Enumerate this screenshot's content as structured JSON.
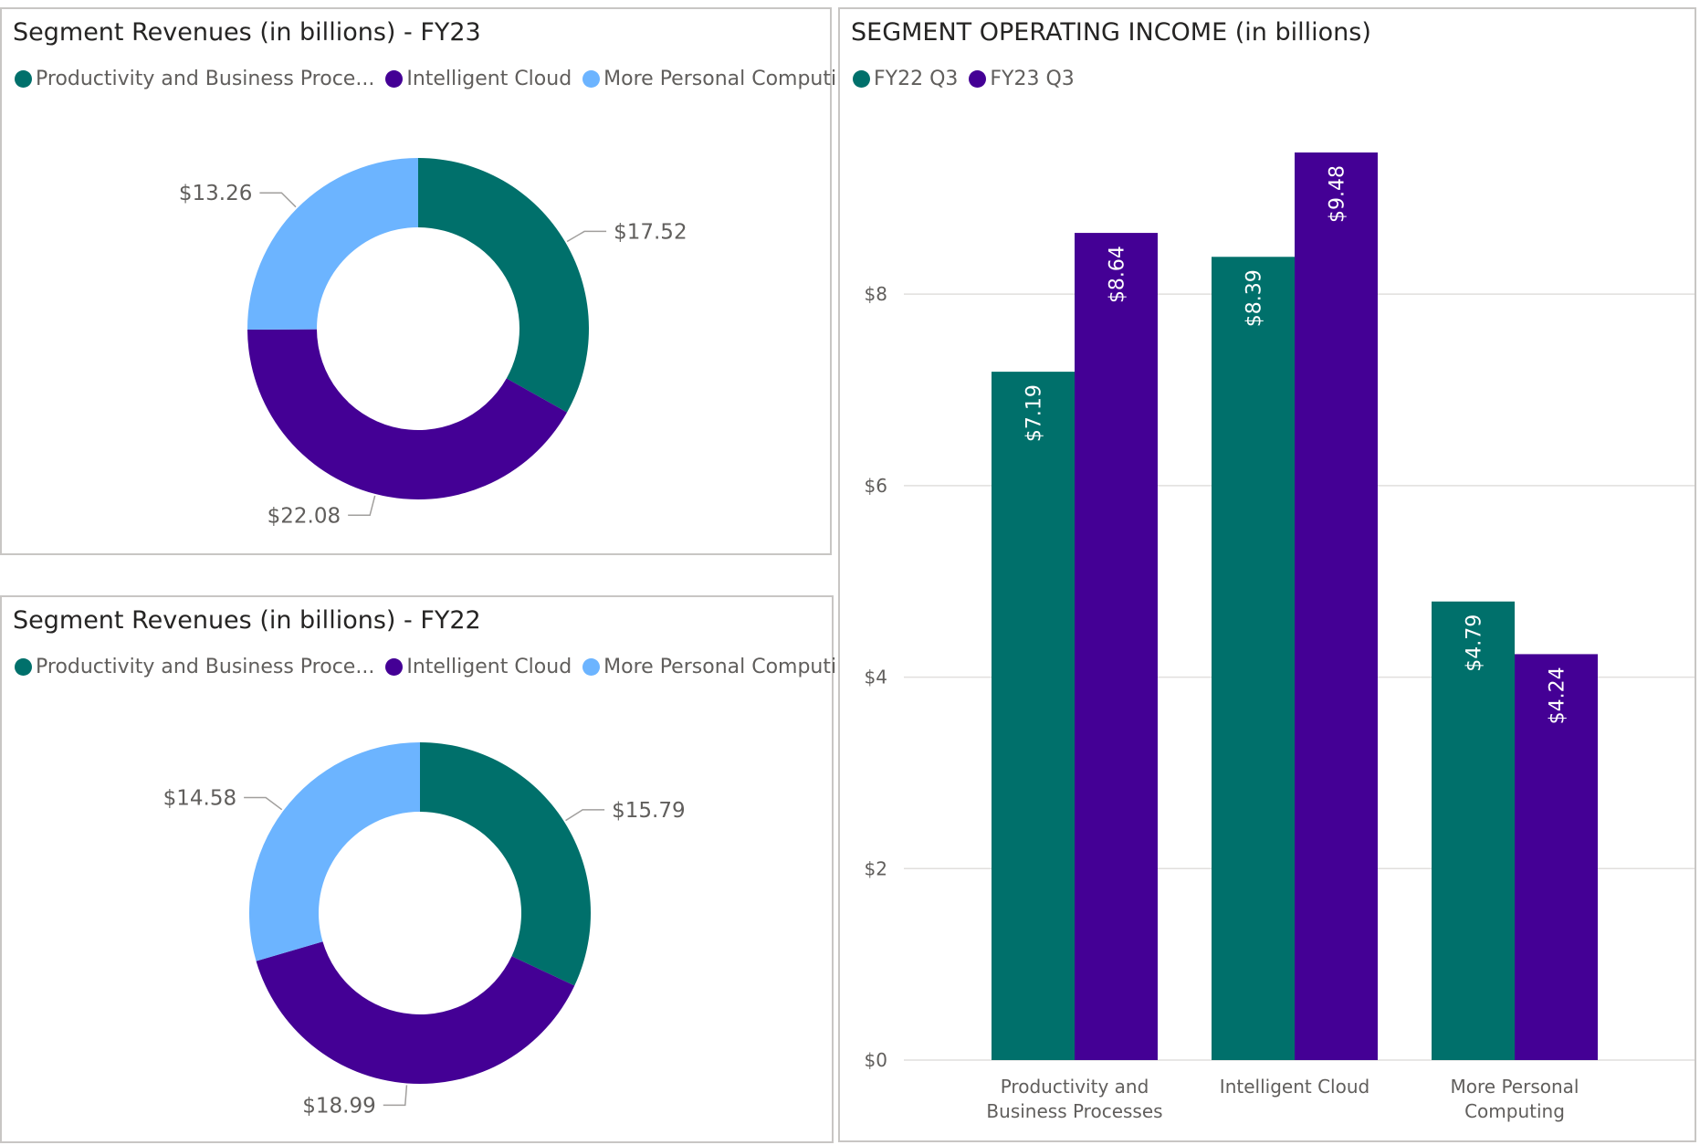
{
  "colors": {
    "productivity": "#00706b",
    "cloud": "#440095",
    "personal": "#6cb4ff",
    "fy22q3": "#00706b",
    "fy23q3": "#440095"
  },
  "panels": {
    "fy23": {
      "title": "Segment Revenues (in billions) - FY23",
      "legend": [
        {
          "label": "Productivity and Business Proce...",
          "color_key": "productivity",
          "icon": "legend-dot-icon"
        },
        {
          "label": "Intelligent Cloud",
          "color_key": "cloud",
          "icon": "legend-dot-icon"
        },
        {
          "label": "More Personal Computing",
          "color_key": "personal",
          "icon": "legend-dot-icon"
        }
      ]
    },
    "fy22": {
      "title": "Segment Revenues (in billions) - FY22",
      "legend": [
        {
          "label": "Productivity and Business Proce...",
          "color_key": "productivity",
          "icon": "legend-dot-icon"
        },
        {
          "label": "Intelligent Cloud",
          "color_key": "cloud",
          "icon": "legend-dot-icon"
        },
        {
          "label": "More Personal Computing",
          "color_key": "personal",
          "icon": "legend-dot-icon"
        }
      ]
    },
    "income": {
      "title": "SEGMENT OPERATING INCOME (in billions)",
      "legend": [
        {
          "label": "FY22 Q3",
          "color_key": "fy22q3",
          "icon": "legend-dot-icon"
        },
        {
          "label": "FY23 Q3",
          "color_key": "fy23q3",
          "icon": "legend-dot-icon"
        }
      ]
    }
  },
  "chart_data": [
    {
      "id": "fy23",
      "type": "pie",
      "donut": true,
      "title": "Segment Revenues (in billions) - FY23",
      "legend_position": "top-left",
      "slices": [
        {
          "name": "Productivity and Business Processes",
          "value": 17.52,
          "label": "$17.52",
          "color_key": "productivity"
        },
        {
          "name": "Intelligent Cloud",
          "value": 22.08,
          "label": "$22.08",
          "color_key": "cloud"
        },
        {
          "name": "More Personal Computing",
          "value": 13.26,
          "label": "$13.26",
          "color_key": "personal"
        }
      ]
    },
    {
      "id": "fy22",
      "type": "pie",
      "donut": true,
      "title": "Segment Revenues (in billions) - FY22",
      "legend_position": "top-left",
      "slices": [
        {
          "name": "Productivity and Business Processes",
          "value": 15.79,
          "label": "$15.79",
          "color_key": "productivity"
        },
        {
          "name": "Intelligent Cloud",
          "value": 18.99,
          "label": "$18.99",
          "color_key": "cloud"
        },
        {
          "name": "More Personal Computing",
          "value": 14.58,
          "label": "$14.58",
          "color_key": "personal"
        }
      ]
    },
    {
      "id": "income",
      "type": "bar",
      "title": "SEGMENT OPERATING INCOME (in billions)",
      "legend_position": "top-left",
      "categories": [
        [
          "Productivity and",
          "Business Processes"
        ],
        [
          "Intelligent Cloud"
        ],
        [
          "More Personal",
          "Computing"
        ]
      ],
      "series": [
        {
          "name": "FY22 Q3",
          "values": [
            7.19,
            8.39,
            4.79
          ],
          "labels": [
            "$7.19",
            "$8.39",
            "$4.79"
          ],
          "color_key": "fy22q3"
        },
        {
          "name": "FY23 Q3",
          "values": [
            8.64,
            9.48,
            4.24
          ],
          "labels": [
            "$8.64",
            "$9.48",
            "$4.24"
          ],
          "color_key": "fy23q3"
        }
      ],
      "ylim": [
        0,
        9.48
      ],
      "yticks": [
        0,
        2,
        4,
        6,
        8
      ],
      "ytick_labels": [
        "$0",
        "$2",
        "$4",
        "$6",
        "$8"
      ],
      "grid": true,
      "xlabel": "",
      "ylabel": ""
    }
  ]
}
